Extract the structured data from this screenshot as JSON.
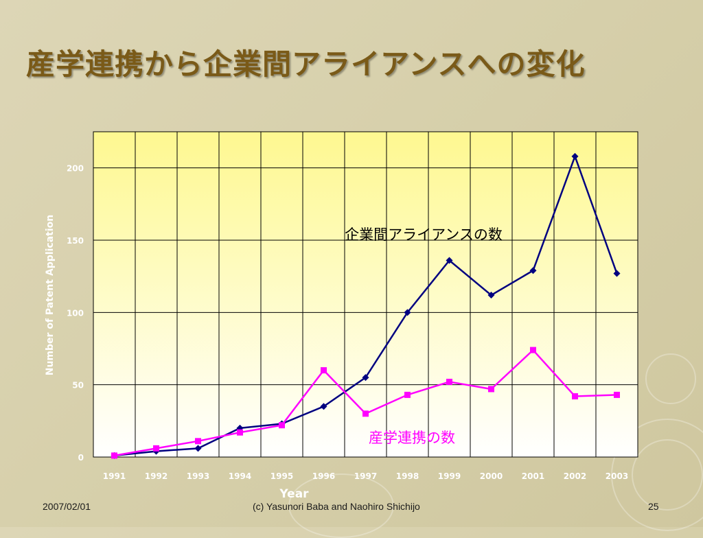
{
  "slide": {
    "title": "産学連携から企業間アライアンスへの変化",
    "footer_date": "2007/02/01",
    "footer_credit": "(c) Yasunori Baba and Naohiro Shichijo",
    "page_number": "25"
  },
  "colors": {
    "title": "#7a5a18",
    "series_alliance": "#000080",
    "series_industry_academia": "#ff00ff",
    "plot_top": "#fef890",
    "plot_bottom": "#ffffff",
    "axis_text": "#ffffff"
  },
  "chart_data": {
    "type": "line",
    "xlabel": "Year",
    "ylabel": "Number of Patent Application",
    "ylim": [
      0,
      225
    ],
    "yticks": [
      0,
      50,
      100,
      150,
      200
    ],
    "x": [
      "1991",
      "1992",
      "1993",
      "1994",
      "1995",
      "1996",
      "1997",
      "1998",
      "1999",
      "2000",
      "2001",
      "2002",
      "2003"
    ],
    "grid": true,
    "series": [
      {
        "name": "企業間アライアンスの数",
        "marker": "diamond",
        "values": [
          1,
          4,
          6,
          20,
          23,
          35,
          55,
          100,
          136,
          112,
          129,
          208,
          127
        ]
      },
      {
        "name": "産学連携の数",
        "marker": "square",
        "values": [
          1,
          6,
          11,
          17,
          22,
          60,
          30,
          43,
          52,
          47,
          74,
          42,
          43
        ]
      }
    ]
  }
}
